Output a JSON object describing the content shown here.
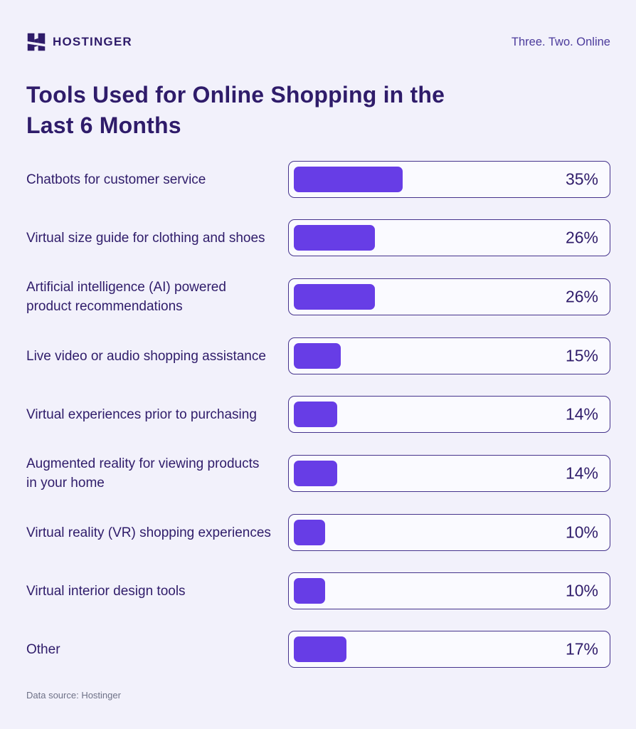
{
  "header": {
    "brand": "HOSTINGER",
    "tagline": "Three. Two. Online",
    "logo_icon": "hostinger-h-icon"
  },
  "title": {
    "full": "Tools Used for Online Shopping in the Last 6 Months",
    "line1": "Tools Used for Online Shopping in the",
    "line2": "Last 6 Months"
  },
  "footer": {
    "source": "Data source: Hostinger"
  },
  "colors": {
    "page_bg": "#F2F1FB",
    "accent": "#673DE6",
    "dark_text": "#2F1C6A",
    "track_bg": "#FAFAFF",
    "track_border": "#45338C",
    "tagline_text": "#4B3A9B",
    "source_text": "#6E7187"
  },
  "chart_data": {
    "type": "bar",
    "orientation": "horizontal",
    "title": "Tools Used for Online Shopping in the Last 6 Months",
    "unit": "%",
    "xlim": [
      0,
      100
    ],
    "grid": false,
    "legend": false,
    "categories": [
      "Chatbots for customer service",
      "Virtual size guide for clothing and shoes",
      "Artificial intelligence (AI) powered product recommendations",
      "Live video or audio shopping assistance",
      "Virtual experiences prior to purchasing",
      "Augmented reality for viewing products in your home",
      "Virtual reality (VR) shopping experiences",
      "Virtual interior design tools",
      "Other"
    ],
    "values": [
      35,
      26,
      26,
      15,
      14,
      14,
      10,
      10,
      17
    ],
    "value_labels": [
      "35%",
      "26%",
      "26%",
      "15%",
      "14%",
      "14%",
      "10%",
      "10%",
      "17%"
    ],
    "bar_color": "#673DE6"
  }
}
